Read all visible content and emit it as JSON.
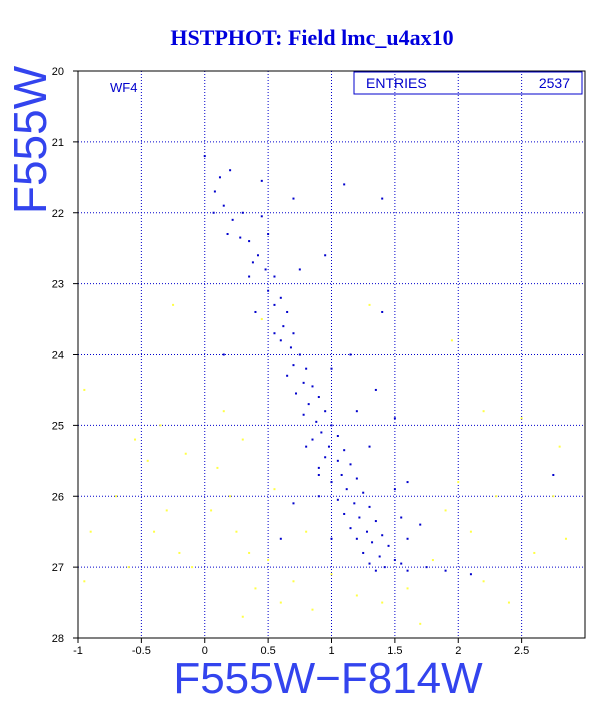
{
  "chart_data": {
    "type": "scatter",
    "title": "HSTPHOT: Field lmc_u4ax10",
    "xlabel": "F555W−F814W",
    "ylabel": "F555W",
    "annotation": "WF4",
    "stats_label": "ENTRIES",
    "stats_value": "2537",
    "xlim": [
      -1,
      3
    ],
    "ylim": [
      28,
      20
    ],
    "xticks": [
      -1,
      -0.5,
      0,
      0.5,
      1,
      1.5,
      2,
      2.5
    ],
    "yticks": [
      20,
      21,
      22,
      23,
      24,
      25,
      26,
      27,
      28
    ],
    "grid": true,
    "grid_color": "#0000cc",
    "series": [
      {
        "color": "#ffff44",
        "x": [
          -0.95,
          -0.9,
          -0.95,
          -0.7,
          -0.55,
          -0.45,
          -0.4,
          -0.35,
          -0.3,
          -0.2,
          -0.15,
          -0.1,
          0.05,
          0.1,
          0.2,
          0.25,
          0.3,
          0.35,
          0.15,
          0.4,
          0.5,
          0.55,
          0.6,
          0.45,
          -0.25,
          0.7,
          0.85,
          1.0,
          1.2,
          1.4,
          1.6,
          1.8,
          1.9,
          2.0,
          2.1,
          2.2,
          2.3,
          2.4,
          2.6,
          2.8,
          2.85,
          2.2,
          1.95,
          2.5,
          1.7,
          0.3,
          -0.6,
          2.75,
          0.8,
          1.3
        ],
        "y": [
          24.5,
          26.5,
          27.2,
          26.0,
          25.2,
          25.5,
          26.5,
          25.0,
          26.2,
          26.8,
          25.4,
          27.0,
          26.2,
          25.6,
          26.0,
          26.5,
          25.2,
          26.8,
          24.8,
          27.3,
          26.9,
          25.9,
          27.5,
          23.5,
          23.3,
          27.2,
          27.6,
          27.1,
          27.4,
          27.5,
          27.3,
          26.9,
          26.2,
          25.8,
          26.5,
          27.2,
          26.0,
          27.5,
          26.8,
          25.3,
          26.6,
          24.8,
          23.8,
          24.9,
          27.8,
          27.7,
          27.0,
          26.0,
          26.5,
          23.3
        ]
      },
      {
        "color": "#0000cc",
        "x": [
          0.0,
          0.12,
          0.2,
          0.08,
          0.15,
          0.07,
          0.22,
          0.3,
          0.45,
          0.18,
          0.28,
          0.35,
          0.5,
          0.42,
          0.38,
          0.48,
          0.55,
          0.5,
          0.6,
          0.55,
          0.65,
          0.62,
          0.7,
          0.6,
          0.68,
          0.75,
          0.7,
          0.8,
          0.65,
          0.78,
          0.85,
          0.72,
          0.9,
          0.82,
          0.95,
          0.78,
          0.88,
          1.0,
          0.92,
          1.05,
          0.85,
          0.98,
          1.1,
          0.95,
          1.05,
          1.15,
          0.9,
          1.08,
          1.2,
          1.0,
          1.12,
          1.25,
          1.05,
          1.18,
          1.3,
          1.1,
          1.22,
          1.35,
          1.15,
          1.28,
          1.4,
          1.2,
          1.32,
          1.45,
          1.25,
          1.38,
          1.5,
          1.3,
          1.42,
          1.55,
          1.35,
          1.6,
          1.75,
          1.9,
          2.1,
          1.0,
          0.9,
          1.5,
          1.3,
          1.2,
          1.5,
          1.35,
          1.0,
          1.6,
          1.7,
          1.55,
          0.35,
          0.75,
          0.95,
          0.55,
          1.1,
          0.7,
          1.4,
          0.45,
          0.15,
          1.4,
          1.15,
          2.75,
          0.4,
          0.9,
          0.8,
          1.6,
          0.6,
          0.7
        ],
        "y": [
          21.2,
          21.5,
          21.4,
          21.7,
          21.9,
          22.0,
          22.1,
          22.0,
          22.05,
          22.3,
          22.35,
          22.4,
          22.3,
          22.6,
          22.7,
          22.8,
          22.9,
          23.1,
          23.2,
          23.3,
          23.4,
          23.6,
          23.7,
          23.8,
          23.9,
          24.0,
          24.15,
          24.2,
          24.3,
          24.4,
          24.45,
          24.55,
          24.6,
          24.7,
          24.8,
          24.85,
          24.95,
          25.0,
          25.1,
          25.15,
          25.2,
          25.3,
          25.35,
          25.45,
          25.5,
          25.55,
          25.6,
          25.7,
          25.75,
          25.8,
          25.9,
          25.95,
          26.05,
          26.1,
          26.15,
          26.25,
          26.3,
          26.35,
          26.45,
          26.5,
          26.55,
          26.6,
          26.65,
          26.7,
          26.8,
          26.85,
          26.9,
          26.95,
          27.0,
          26.95,
          27.05,
          27.05,
          27.0,
          27.05,
          27.1,
          26.6,
          26.0,
          25.9,
          25.3,
          24.8,
          24.9,
          24.5,
          24.2,
          25.8,
          26.4,
          26.3,
          22.9,
          22.8,
          22.6,
          23.7,
          21.6,
          21.8,
          21.8,
          21.55,
          24.0,
          23.4,
          24.0,
          25.7,
          23.4,
          25.7,
          25.3,
          26.6,
          26.6,
          26.1
        ]
      }
    ]
  }
}
